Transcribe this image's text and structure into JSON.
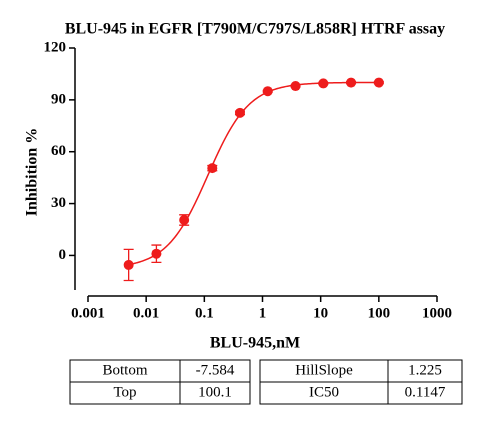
{
  "chart_data": {
    "type": "scatter",
    "title": "BLU-945 in EGFR [T790M/C797S/L858R] HTRF assay",
    "xlabel": "BLU-945,nM",
    "ylabel": "Inhibition %",
    "x": [
      0.005,
      0.015,
      0.045,
      0.137,
      0.41,
      1.23,
      3.7,
      11.1,
      33.3,
      100
    ],
    "series": [
      {
        "color": "#ee1c1c",
        "values": [
          -5.5,
          1,
          20.5,
          50.5,
          82.5,
          95,
          98,
          99.5,
          100,
          100
        ],
        "errors": [
          9,
          5,
          3,
          1.5,
          1,
          0.5,
          0.5,
          0.5,
          0.5,
          0.5
        ]
      }
    ],
    "log_x": true,
    "xlim": [
      0.001,
      1000
    ],
    "xticks": [
      0.001,
      0.01,
      0.1,
      1,
      10,
      100,
      1000
    ],
    "ylim": [
      -20,
      120
    ],
    "yticks": [
      0,
      30,
      60,
      90,
      120
    ],
    "fit_params": [
      {
        "label": "Bottom",
        "value": -7.584
      },
      {
        "label": "Top",
        "value": 100.1
      },
      {
        "label": "HillSlope",
        "value": 1.225
      },
      {
        "label": "IC50",
        "value": 0.1147
      }
    ]
  }
}
